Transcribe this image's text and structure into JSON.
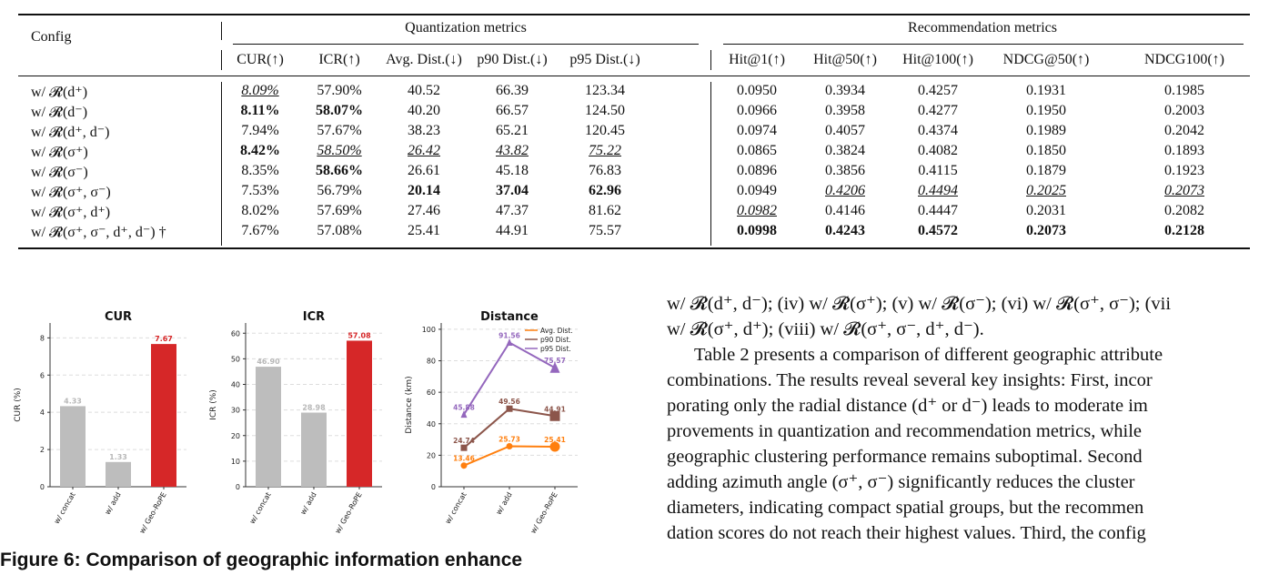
{
  "table": {
    "config_header": "Config",
    "group_headers": {
      "quantization": "Quantization metrics",
      "recommendation": "Recommendation metrics"
    },
    "columns": [
      "CUR(↑)",
      "ICR(↑)",
      "Avg. Dist.(↓)",
      "p90 Dist.(↓)",
      "p95 Dist.(↓)",
      "Hit@1(↑)",
      "Hit@50(↑)",
      "Hit@100(↑)",
      "NDCG@50(↑)",
      "NDCG100(↑)"
    ],
    "rows": [
      {
        "config": "w/ 𝓡(d⁺)",
        "cells": [
          {
            "v": "8.09%",
            "s": "u"
          },
          {
            "v": "57.90%",
            "s": ""
          },
          {
            "v": "40.52",
            "s": ""
          },
          {
            "v": "66.39",
            "s": ""
          },
          {
            "v": "123.34",
            "s": ""
          },
          {
            "v": "0.0950",
            "s": ""
          },
          {
            "v": "0.3934",
            "s": ""
          },
          {
            "v": "0.4257",
            "s": ""
          },
          {
            "v": "0.1931",
            "s": ""
          },
          {
            "v": "0.1985",
            "s": ""
          }
        ]
      },
      {
        "config": "w/ 𝓡(d⁻)",
        "cells": [
          {
            "v": "8.11%",
            "s": "b"
          },
          {
            "v": "58.07%",
            "s": "b"
          },
          {
            "v": "40.20",
            "s": ""
          },
          {
            "v": "66.57",
            "s": ""
          },
          {
            "v": "124.50",
            "s": ""
          },
          {
            "v": "0.0966",
            "s": ""
          },
          {
            "v": "0.3958",
            "s": ""
          },
          {
            "v": "0.4277",
            "s": ""
          },
          {
            "v": "0.1950",
            "s": ""
          },
          {
            "v": "0.2003",
            "s": ""
          }
        ]
      },
      {
        "config": "w/ 𝓡(d⁺, d⁻)",
        "cells": [
          {
            "v": "7.94%",
            "s": ""
          },
          {
            "v": "57.67%",
            "s": ""
          },
          {
            "v": "38.23",
            "s": ""
          },
          {
            "v": "65.21",
            "s": ""
          },
          {
            "v": "120.45",
            "s": ""
          },
          {
            "v": "0.0974",
            "s": ""
          },
          {
            "v": "0.4057",
            "s": ""
          },
          {
            "v": "0.4374",
            "s": ""
          },
          {
            "v": "0.1989",
            "s": ""
          },
          {
            "v": "0.2042",
            "s": ""
          }
        ]
      },
      {
        "config": "w/ 𝓡(σ⁺)",
        "cells": [
          {
            "v": "8.42%",
            "s": "b"
          },
          {
            "v": "58.50%",
            "s": "u"
          },
          {
            "v": "26.42",
            "s": "u"
          },
          {
            "v": "43.82",
            "s": "u"
          },
          {
            "v": "75.22",
            "s": "u"
          },
          {
            "v": "0.0865",
            "s": ""
          },
          {
            "v": "0.3824",
            "s": ""
          },
          {
            "v": "0.4082",
            "s": ""
          },
          {
            "v": "0.1850",
            "s": ""
          },
          {
            "v": "0.1893",
            "s": ""
          }
        ]
      },
      {
        "config": "w/ 𝓡(σ⁻)",
        "cells": [
          {
            "v": "8.35%",
            "s": ""
          },
          {
            "v": "58.66%",
            "s": "b"
          },
          {
            "v": "26.61",
            "s": ""
          },
          {
            "v": "45.18",
            "s": ""
          },
          {
            "v": "76.83",
            "s": ""
          },
          {
            "v": "0.0896",
            "s": ""
          },
          {
            "v": "0.3856",
            "s": ""
          },
          {
            "v": "0.4115",
            "s": ""
          },
          {
            "v": "0.1879",
            "s": ""
          },
          {
            "v": "0.1923",
            "s": ""
          }
        ]
      },
      {
        "config": "w/ 𝓡(σ⁺, σ⁻)",
        "cells": [
          {
            "v": "7.53%",
            "s": ""
          },
          {
            "v": "56.79%",
            "s": ""
          },
          {
            "v": "20.14",
            "s": "b"
          },
          {
            "v": "37.04",
            "s": "b"
          },
          {
            "v": "62.96",
            "s": "b"
          },
          {
            "v": "0.0949",
            "s": ""
          },
          {
            "v": "0.4206",
            "s": "u"
          },
          {
            "v": "0.4494",
            "s": "u"
          },
          {
            "v": "0.2025",
            "s": "u"
          },
          {
            "v": "0.2073",
            "s": "u"
          }
        ]
      },
      {
        "config": "w/ 𝓡(σ⁺, d⁺)",
        "cells": [
          {
            "v": "8.02%",
            "s": ""
          },
          {
            "v": "57.69%",
            "s": ""
          },
          {
            "v": "27.46",
            "s": ""
          },
          {
            "v": "47.37",
            "s": ""
          },
          {
            "v": "81.62",
            "s": ""
          },
          {
            "v": "0.0982",
            "s": "u"
          },
          {
            "v": "0.4146",
            "s": ""
          },
          {
            "v": "0.4447",
            "s": ""
          },
          {
            "v": "0.2031",
            "s": ""
          },
          {
            "v": "0.2082",
            "s": ""
          }
        ]
      },
      {
        "config": "w/ 𝓡(σ⁺, σ⁻, d⁺, d⁻) †",
        "cells": [
          {
            "v": "7.67%",
            "s": ""
          },
          {
            "v": "57.08%",
            "s": ""
          },
          {
            "v": "25.41",
            "s": ""
          },
          {
            "v": "44.91",
            "s": ""
          },
          {
            "v": "75.57",
            "s": ""
          },
          {
            "v": "0.0998",
            "s": "b"
          },
          {
            "v": "0.4243",
            "s": "b"
          },
          {
            "v": "0.4572",
            "s": "b"
          },
          {
            "v": "0.2073",
            "s": "b"
          },
          {
            "v": "0.2128",
            "s": "b"
          }
        ]
      }
    ]
  },
  "chart_data": [
    {
      "type": "bar",
      "title": "CUR",
      "ylabel": "CUR (%)",
      "categories": [
        "w/ concat",
        "w/ add",
        "w/ Geo-RoPE"
      ],
      "values": [
        4.33,
        1.33,
        7.67
      ],
      "value_labels": [
        "4.33",
        "1.33",
        "7.67"
      ],
      "yticks": [
        "0",
        "2",
        "4",
        "6",
        "8"
      ],
      "ylim": [
        0,
        8.8
      ],
      "colors": [
        "#bdbdbd",
        "#bdbdbd",
        "#d62728"
      ],
      "grid": true
    },
    {
      "type": "bar",
      "title": "ICR",
      "ylabel": "ICR (%)",
      "categories": [
        "w/ concat",
        "w/ add",
        "w/ Geo-RoPE"
      ],
      "values": [
        46.9,
        28.98,
        57.08
      ],
      "value_labels": [
        "46.90",
        "28.98",
        "57.08"
      ],
      "yticks": [
        "0",
        "10",
        "20",
        "30",
        "40",
        "50",
        "60"
      ],
      "ylim": [
        0,
        64
      ],
      "colors": [
        "#bdbdbd",
        "#bdbdbd",
        "#d62728"
      ],
      "grid": true
    },
    {
      "type": "line",
      "title": "Distance",
      "ylabel": "Distance (km)",
      "categories": [
        "w/ concat",
        "w/ add",
        "w/ Geo-RoPE"
      ],
      "yticks": [
        "0",
        "20",
        "40",
        "60",
        "80",
        "100"
      ],
      "ylim": [
        0,
        104
      ],
      "legend_position": "top-right",
      "series": [
        {
          "name": "Avg. Dist.",
          "values": [
            13.46,
            25.73,
            25.41
          ],
          "labels": [
            "13.46",
            "25.73",
            "25.41"
          ],
          "color": "#ff7f0e",
          "marker": "circle"
        },
        {
          "name": "p90 Dist.",
          "values": [
            24.74,
            49.56,
            44.91
          ],
          "labels": [
            "24.74",
            "49.56",
            "44.91"
          ],
          "color": "#8c564b",
          "marker": "square"
        },
        {
          "name": "p95 Dist.",
          "values": [
            45.88,
            91.56,
            75.57
          ],
          "labels": [
            "45.88",
            "91.56",
            "75.57"
          ],
          "color": "#9467bd",
          "marker": "triangle"
        }
      ],
      "grid": true
    }
  ],
  "body_text": {
    "line1": "w/ 𝓡(d⁺, d⁻); (iv) w/ 𝓡(σ⁺); (v) w/ 𝓡(σ⁻); (vi) w/ 𝓡(σ⁺, σ⁻); (vii",
    "line2": "w/ 𝓡(σ⁺, d⁺); (viii) w/ 𝓡(σ⁺, σ⁻, d⁺, d⁻).",
    "paragraph": [
      "Table 2 presents a comparison of different geographic attribute",
      "combinations. The results reveal several key insights: First, incor",
      "porating only the radial distance (d⁺ or d⁻) leads to moderate im",
      "provements in quantization and recommendation metrics, while",
      "geographic clustering performance remains suboptimal. Second",
      "adding azimuth angle (σ⁺, σ⁻) significantly reduces the cluster",
      "diameters, indicating compact spatial groups, but the recommen",
      "dation scores do not reach their highest values. Third, the config"
    ]
  },
  "caption": "Figure 6: Comparison of geographic information enhance"
}
